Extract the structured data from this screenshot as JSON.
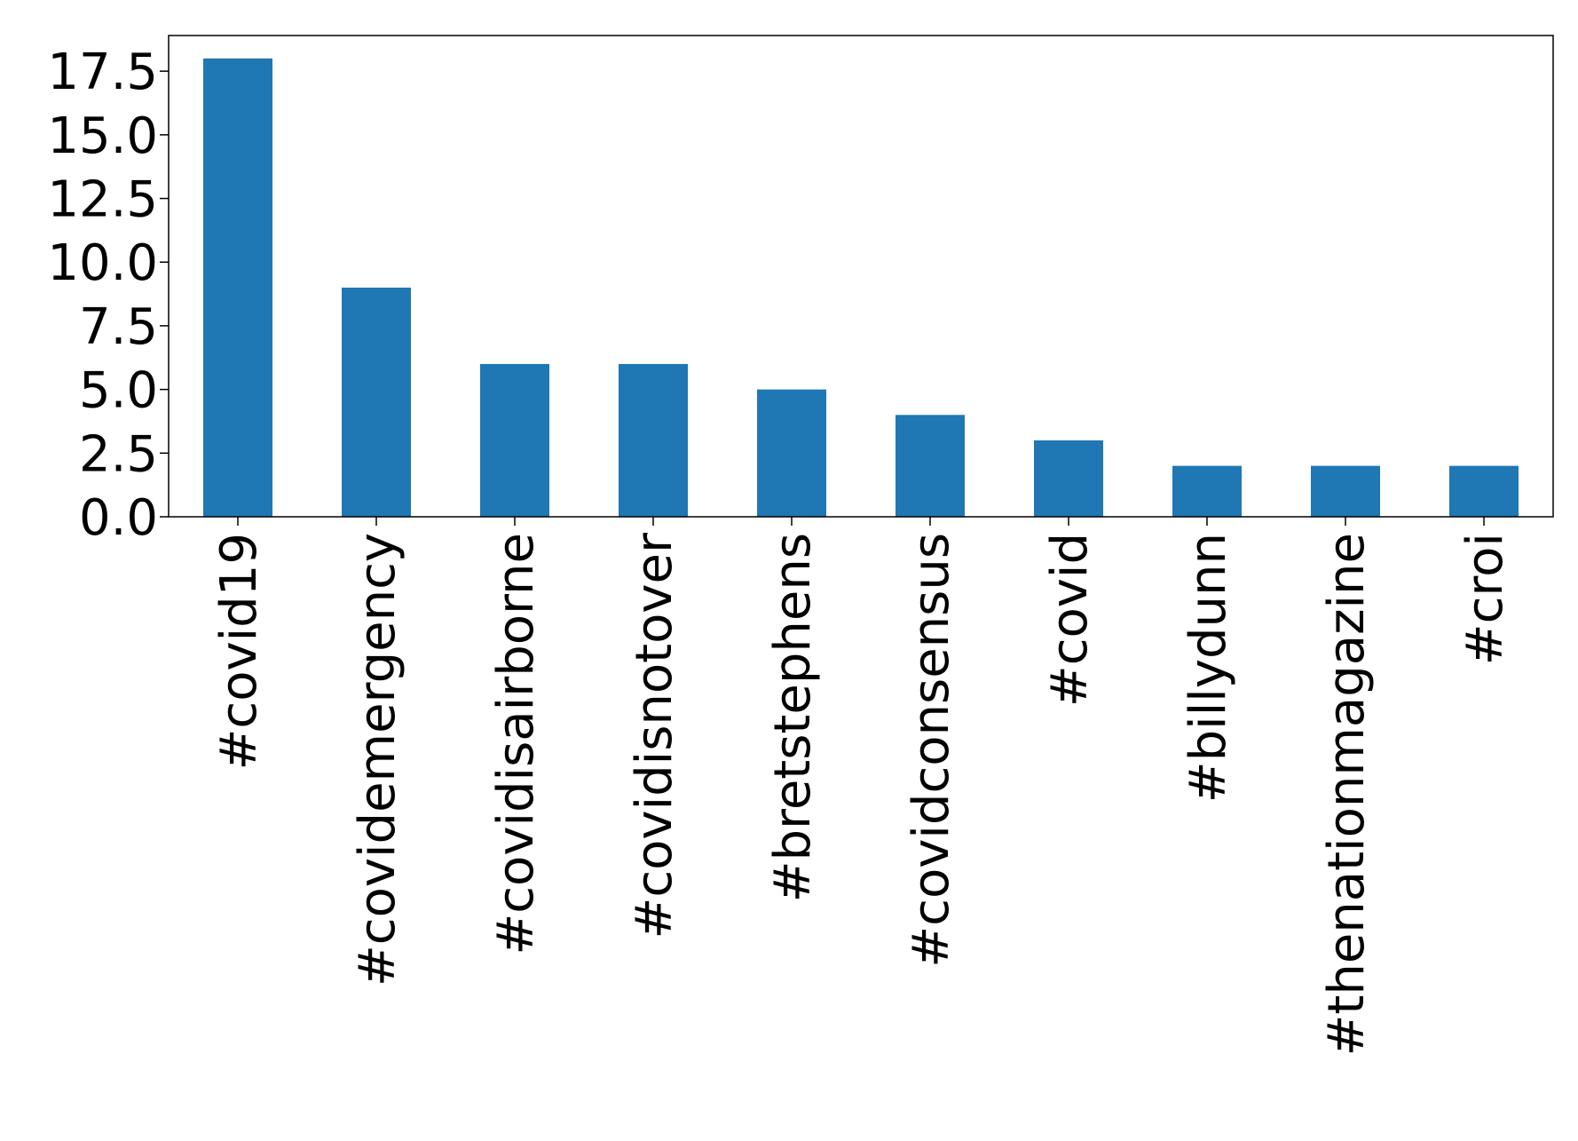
{
  "chart_data": {
    "type": "bar",
    "title": "",
    "xlabel": "",
    "ylabel": "",
    "categories": [
      "#covid19",
      "#covidemergency",
      "#covidisairborne",
      "#covidisnotover",
      "#bretstephens",
      "#covidconsensus",
      "#covid",
      "#billydunn",
      "#thenationmagazine",
      "#croi"
    ],
    "values": [
      18,
      9,
      6,
      6,
      5,
      4,
      3,
      2,
      2,
      2
    ],
    "ylim": [
      0,
      18.9
    ],
    "yticks": [
      0.0,
      2.5,
      5.0,
      7.5,
      10.0,
      12.5,
      15.0,
      17.5
    ],
    "ytick_labels": [
      "0.0",
      "2.5",
      "5.0",
      "7.5",
      "10.0",
      "12.5",
      "15.0",
      "17.5"
    ],
    "bar_color": "#1f77b4",
    "grid": false,
    "legend": "none"
  }
}
